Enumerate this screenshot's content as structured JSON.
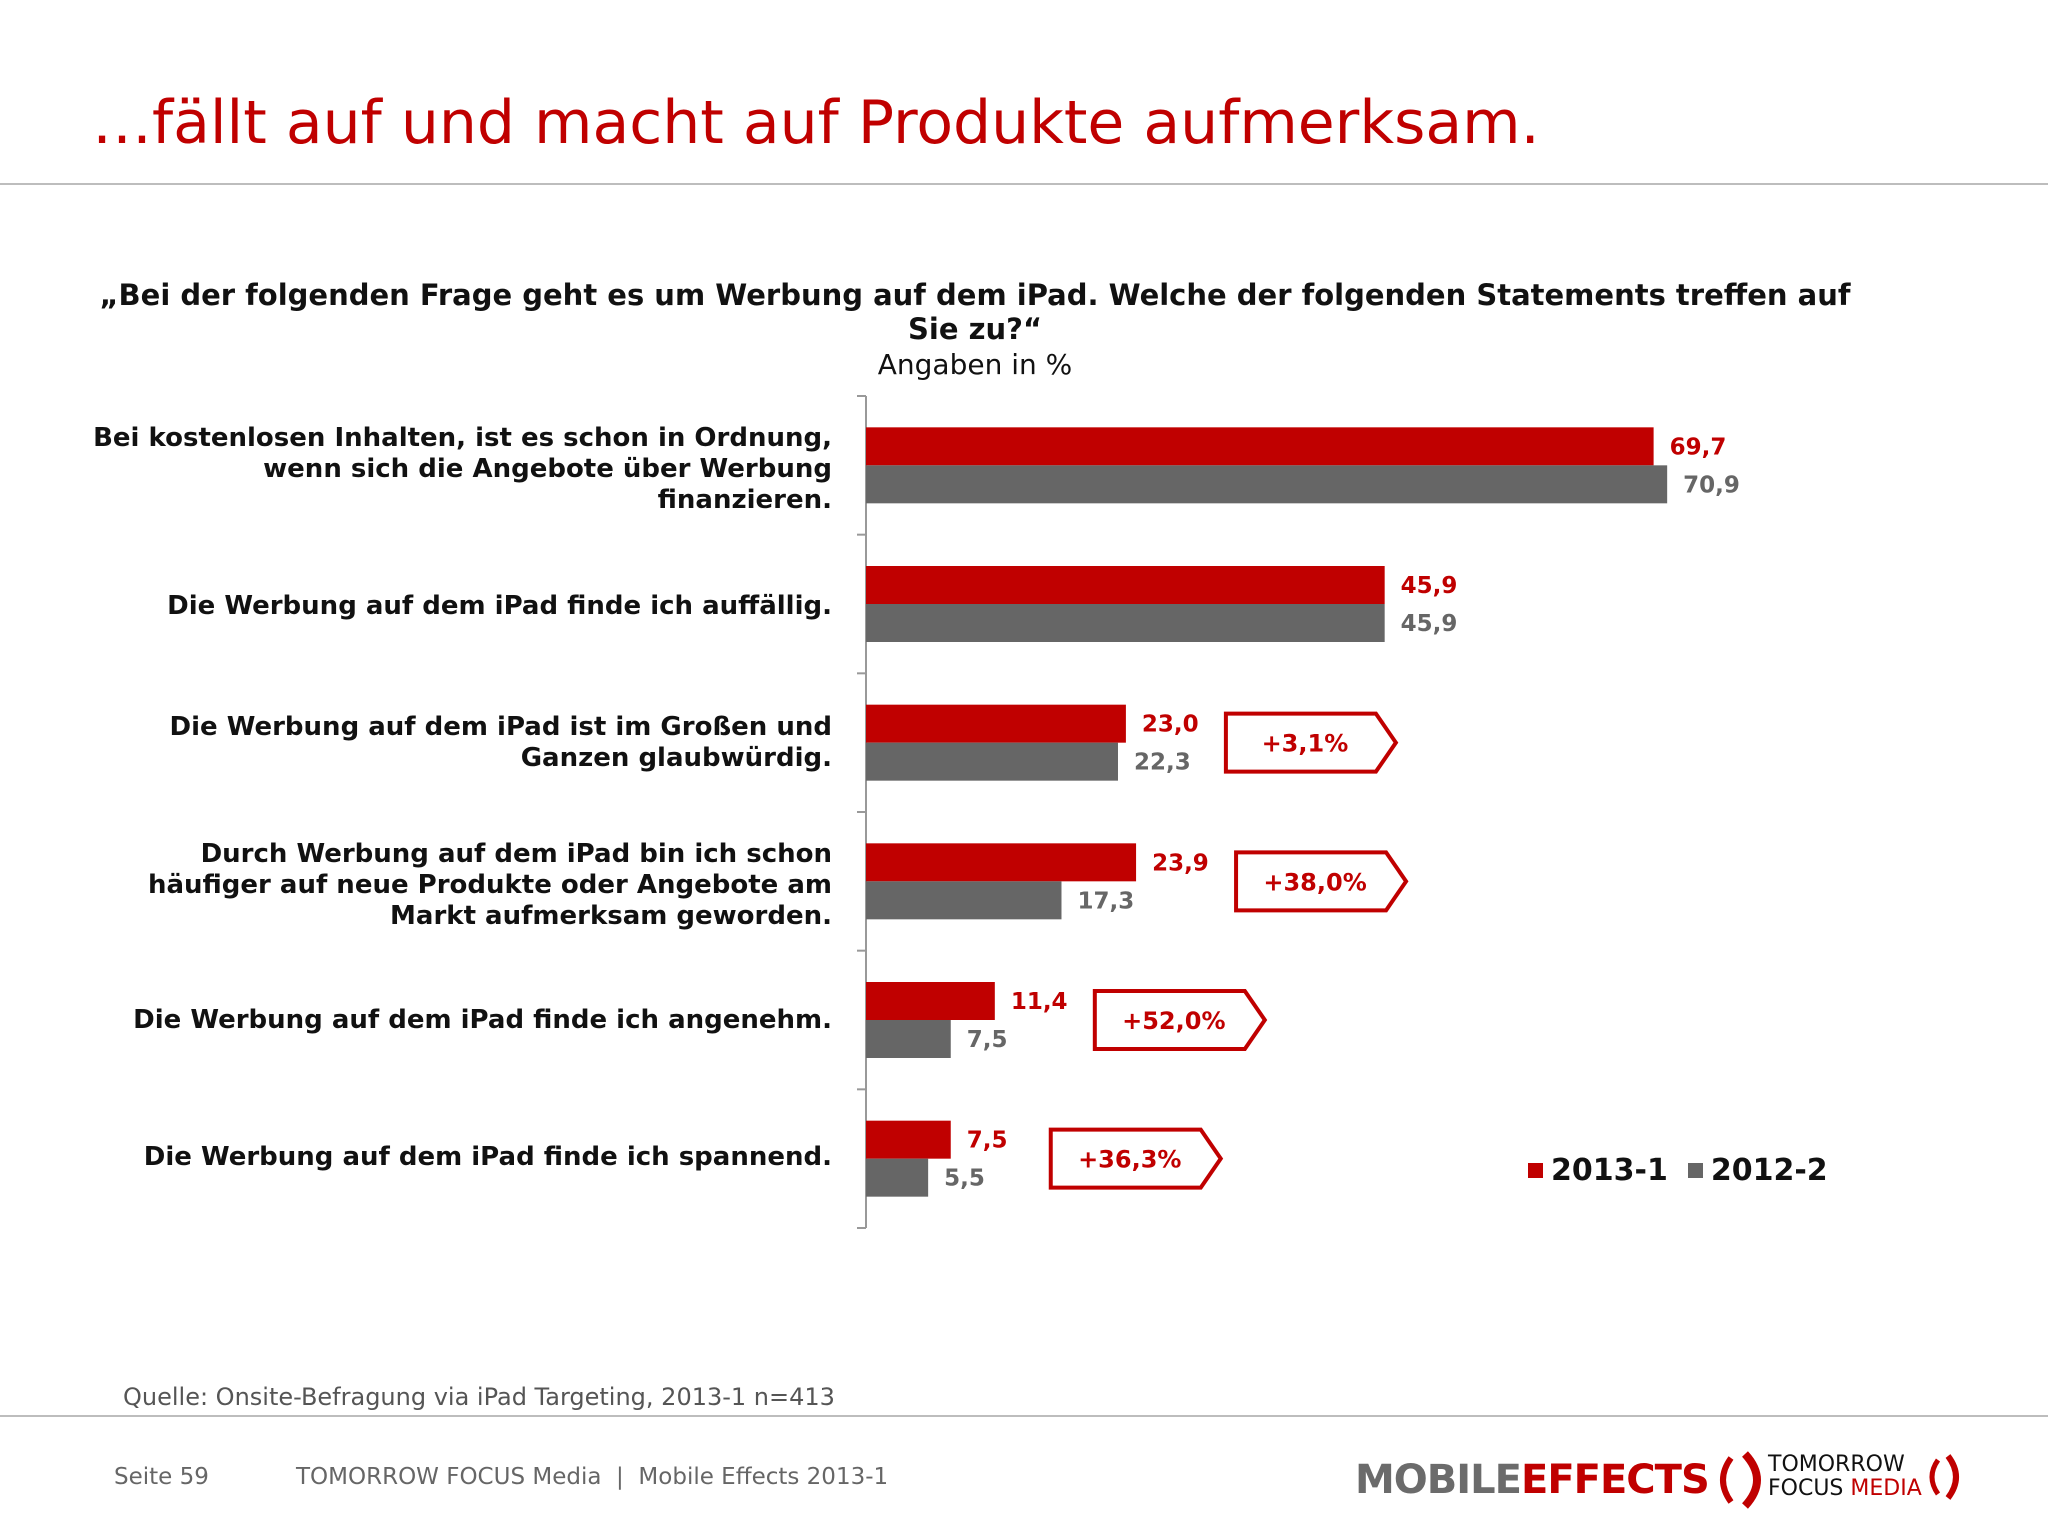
{
  "header": {
    "title": "…fällt auf und macht auf Produkte aufmerksam."
  },
  "chart_data": {
    "type": "bar",
    "orientation": "horizontal",
    "title": "„Bei der folgenden Frage geht es um Werbung auf dem iPad. Welche der folgenden Statements treffen auf Sie zu?“",
    "subtitle": "Angaben in %",
    "categories": [
      "Bei kostenlosen Inhalten, ist es schon in Ordnung, wenn sich die Angebote über Werbung finanzieren.",
      "Die Werbung auf dem iPad finde ich auffällig.",
      "Die Werbung auf dem iPad ist im Großen und Ganzen glaubwürdig.",
      "Durch Werbung auf dem iPad bin ich schon häufiger auf neue Produkte oder Angebote am Markt aufmerksam geworden.",
      "Die Werbung auf dem iPad finde ich angenehm.",
      "Die Werbung auf dem iPad finde ich spannend."
    ],
    "series": [
      {
        "name": "2013-1",
        "color": "#c00000",
        "values": [
          69.7,
          45.9,
          23.0,
          23.9,
          11.4,
          7.5
        ],
        "labels": [
          "69,7",
          "45,9",
          "23,0",
          "23,9",
          "11,4",
          "7,5"
        ]
      },
      {
        "name": "2012-2",
        "color": "#666666",
        "values": [
          70.9,
          45.9,
          22.3,
          17.3,
          7.5,
          5.5
        ],
        "labels": [
          "70,9",
          "45,9",
          "22,3",
          "17,3",
          "7,5",
          "5,5"
        ]
      }
    ],
    "annotations": [
      {
        "category_index": 2,
        "text": "+3,1%"
      },
      {
        "category_index": 3,
        "text": "+38,0%"
      },
      {
        "category_index": 4,
        "text": "+52,0%"
      },
      {
        "category_index": 5,
        "text": "+36,3%"
      }
    ],
    "xlim": [
      0,
      100
    ],
    "grid": false,
    "legend_position": "bottom-right"
  },
  "source": "Quelle: Onsite-Befragung via iPad Targeting, 2013-1 n=413",
  "footer": {
    "page": "Seite 59",
    "publisher": "TOMORROW FOCUS Media  |  Mobile Effects 2013-1"
  },
  "logos": {
    "mobile_effects_part1": "MOBILE",
    "mobile_effects_part2": "EFFECTS",
    "tomorrow_focus_line1": "TOMORROW",
    "tomorrow_focus_line2a": "FOCUS",
    "tomorrow_focus_line2b": "MEDIA"
  }
}
